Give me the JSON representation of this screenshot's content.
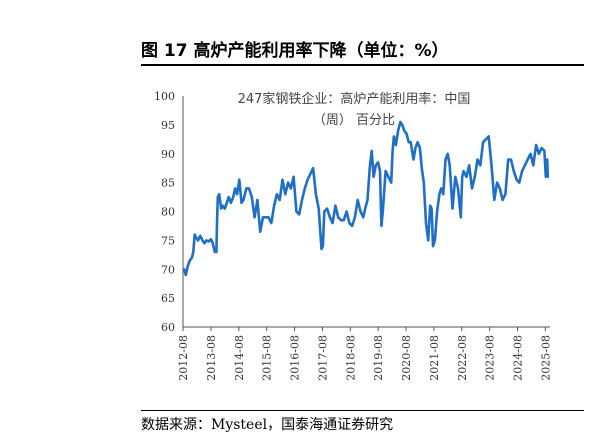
{
  "header": {
    "title": "图 17  高炉产能利用率下降（单位：%）"
  },
  "footer": {
    "source": "数据来源：Mysteel，国泰海通证券研究"
  },
  "chart_data": {
    "type": "line",
    "title": "",
    "xlabel": "",
    "ylabel": "",
    "ylim": [
      60,
      100
    ],
    "yticks": [
      60,
      65,
      70,
      75,
      80,
      85,
      90,
      95,
      100
    ],
    "xlim": [
      2012.58,
      2025.75
    ],
    "xticks": [
      "2012-08",
      "2013-08",
      "2014-08",
      "2015-08",
      "2016-08",
      "2017-08",
      "2018-08",
      "2019-08",
      "2020-08",
      "2021-08",
      "2022-08",
      "2023-08",
      "2024-08",
      "2025-08"
    ],
    "annotation_lines": [
      "247家钢铁企业：高炉产能利用率：中国",
      "（周） 百分比"
    ],
    "line_color": "#1f6fc5",
    "series": [
      {
        "x": [
          2012.62,
          2012.68,
          2012.75,
          2012.82,
          2012.9,
          2012.95,
          2013.0,
          2013.05,
          2013.12,
          2013.2,
          2013.28,
          2013.35,
          2013.42,
          2013.5,
          2013.58,
          2013.65,
          2013.72,
          2013.78,
          2013.8,
          2013.83,
          2013.88,
          2013.95,
          2014.0,
          2014.08,
          2014.15,
          2014.22,
          2014.3,
          2014.38,
          2014.45,
          2014.52,
          2014.6,
          2014.68,
          2014.75,
          2014.85,
          2014.95,
          2015.05,
          2015.15,
          2015.25,
          2015.35,
          2015.45,
          2015.55,
          2015.65,
          2015.75,
          2015.85,
          2015.95,
          2016.05,
          2016.15,
          2016.25,
          2016.35,
          2016.45,
          2016.55,
          2016.65,
          2016.75,
          2016.85,
          2016.95,
          2017.05,
          2017.15,
          2017.25,
          2017.35,
          2017.45,
          2017.55,
          2017.6,
          2017.65,
          2017.75,
          2017.85,
          2017.95,
          2018.05,
          2018.15,
          2018.25,
          2018.35,
          2018.45,
          2018.55,
          2018.65,
          2018.75,
          2018.85,
          2018.95,
          2019.05,
          2019.12,
          2019.2,
          2019.28,
          2019.35,
          2019.42,
          2019.5,
          2019.58,
          2019.65,
          2019.7,
          2019.75,
          2019.85,
          2019.95,
          2020.05,
          2020.1,
          2020.15,
          2020.22,
          2020.3,
          2020.38,
          2020.45,
          2020.52,
          2020.6,
          2020.68,
          2020.75,
          2020.85,
          2020.92,
          2021.0,
          2021.08,
          2021.15,
          2021.22,
          2021.3,
          2021.38,
          2021.45,
          2021.5,
          2021.55,
          2021.62,
          2021.7,
          2021.78,
          2021.85,
          2021.92,
          2022.0,
          2022.08,
          2022.15,
          2022.25,
          2022.35,
          2022.45,
          2022.55,
          2022.6,
          2022.65,
          2022.75,
          2022.85,
          2022.95,
          2023.05,
          2023.15,
          2023.25,
          2023.35,
          2023.45,
          2023.55,
          2023.65,
          2023.75,
          2023.85,
          2023.95,
          2024.05,
          2024.15,
          2024.25,
          2024.35,
          2024.45,
          2024.55,
          2024.65,
          2024.75,
          2024.85,
          2024.95,
          2025.05,
          2025.15,
          2025.25,
          2025.35,
          2025.45,
          2025.55,
          2025.6,
          2025.65,
          2025.67
        ],
        "y": [
          70,
          69,
          70.5,
          71.5,
          72,
          73,
          76,
          75.5,
          75,
          75.8,
          75,
          74.5,
          75,
          74.8,
          75.2,
          74.5,
          73,
          73,
          78,
          82.5,
          83,
          80.5,
          81,
          80.5,
          81.5,
          82.5,
          81.5,
          82.5,
          84,
          83,
          85.5,
          81.5,
          82,
          84,
          84,
          82.5,
          79,
          82,
          76.5,
          79,
          79,
          79,
          78,
          81,
          83,
          82,
          85.5,
          83,
          85,
          84,
          86,
          80,
          79.5,
          82,
          84,
          85.5,
          86.5,
          87.5,
          83,
          80.5,
          73.5,
          74,
          80,
          80.5,
          79,
          78,
          81,
          79,
          78.5,
          78.5,
          80,
          78,
          77.5,
          79,
          82,
          80,
          79,
          80.5,
          82,
          87.5,
          90.5,
          86,
          88,
          88.5,
          87,
          77.5,
          80,
          87,
          86,
          85,
          90.5,
          93,
          91.5,
          94,
          95.5,
          95,
          94,
          93.5,
          92,
          92,
          89,
          91,
          92,
          91,
          87.5,
          85,
          78,
          75,
          81,
          80.5,
          74,
          75,
          80,
          83,
          84,
          83,
          89,
          90,
          88,
          80.5,
          86,
          84,
          79,
          86,
          87,
          86,
          88,
          84,
          86,
          89,
          88,
          92,
          92.5,
          93,
          88,
          82,
          85,
          84,
          82,
          83,
          89,
          89,
          87,
          85.5,
          85,
          87,
          88,
          89,
          90,
          88,
          91.5,
          90,
          91,
          90.5,
          86,
          89,
          86
        ]
      }
    ]
  }
}
